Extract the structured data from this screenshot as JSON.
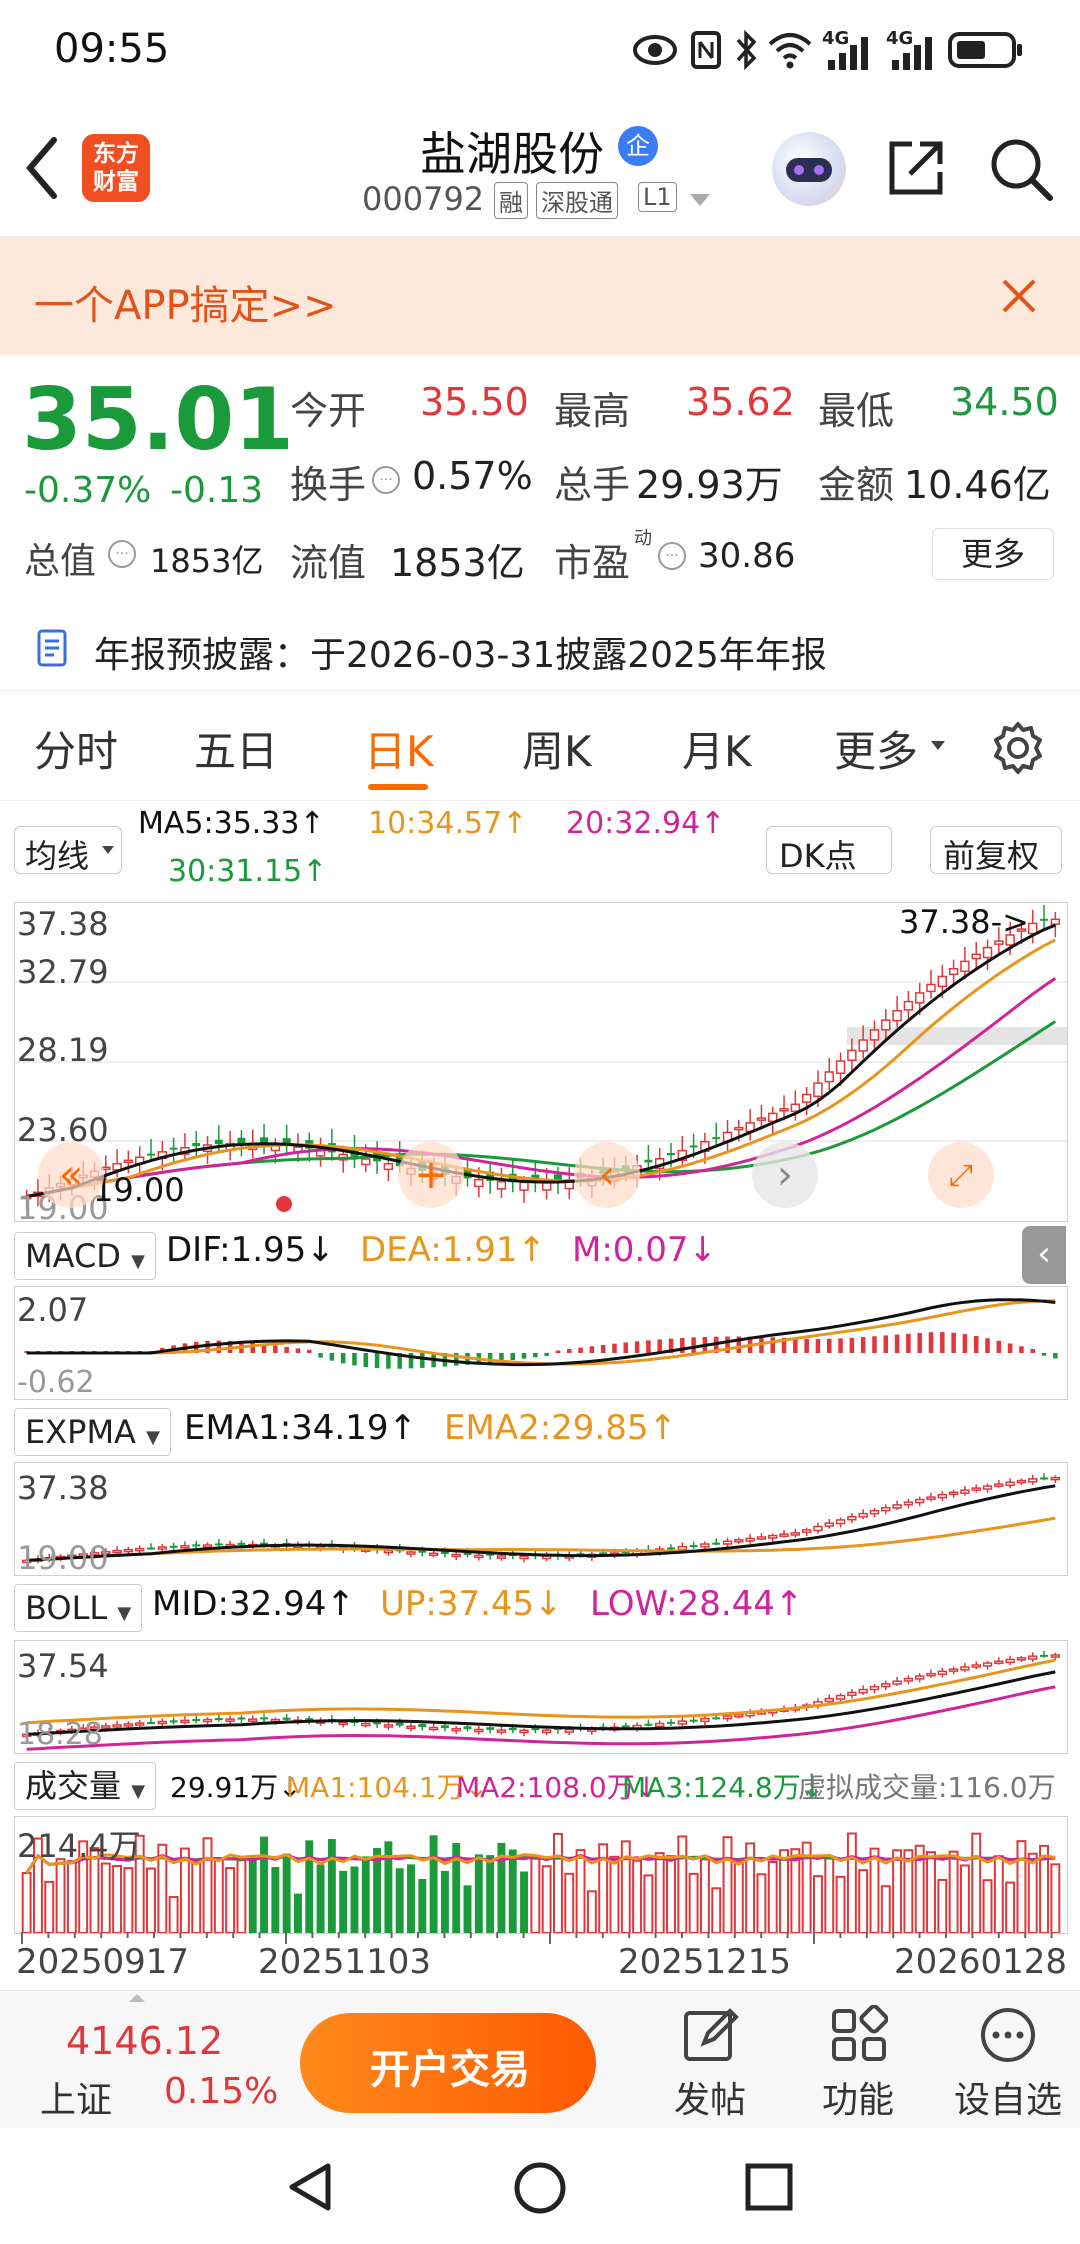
{
  "status_bar": {
    "time": "09:55",
    "network_1": "4G",
    "network_2": "4G"
  },
  "header": {
    "logo_line1": "东方",
    "logo_line2": "财富",
    "stock_name": "盐湖股份",
    "badge": "企",
    "code": "000792",
    "tag_rong": "融",
    "tag_sgt": "深股通",
    "tag_level": "L1"
  },
  "banner": {
    "text": "一个APP搞定>>"
  },
  "quote": {
    "price": "35.01",
    "change_pct": "-0.37%",
    "change_abs": "-0.13",
    "open_label": "今开",
    "open": "35.50",
    "high_label": "最高",
    "high": "35.62",
    "low_label": "最低",
    "low": "34.50",
    "turnover_label": "换手",
    "turnover": "0.57%",
    "volume_label": "总手",
    "volume": "29.93万",
    "amount_label": "金额",
    "amount": "10.46亿",
    "mcap_label": "总值",
    "mcap": "1853亿",
    "float_label": "流值",
    "float": "1853亿",
    "pe_label": "市盈",
    "pe_sup": "动",
    "pe": "30.86",
    "more": "更多"
  },
  "notice": {
    "text": "年报预披露：于2026-03-31披露2025年年报"
  },
  "tabs": [
    "分时",
    "五日",
    "日K",
    "周K",
    "月K",
    "更多"
  ],
  "active_tab": "日K",
  "ma_bar": {
    "select": "均线",
    "ma5": "MA5:35.33↑",
    "ma10": "10:34.57↑",
    "ma20": "20:32.94↑",
    "ma30": "30:31.15↑",
    "dk": "DK点",
    "adjust": "前复权"
  },
  "kline": {
    "y_labels": [
      "37.38",
      "32.79",
      "28.19",
      "23.60",
      "19.00"
    ],
    "max_label": "37.38->",
    "min_label": "19.00"
  },
  "macd": {
    "select": "MACD",
    "dif": "DIF:1.95↓",
    "dea": "DEA:1.91↑",
    "m": "M:0.07↓",
    "y_top": "2.07",
    "y_bottom": "-0.62"
  },
  "expma": {
    "select": "EXPMA",
    "ema1": "EMA1:34.19↑",
    "ema2": "EMA2:29.85↑",
    "y_top": "37.38",
    "y_bottom": "19.00"
  },
  "boll": {
    "select": "BOLL",
    "mid": "MID:32.94↑",
    "up": "UP:37.45↓",
    "low": "LOW:28.44↑",
    "y_top": "37.54",
    "y_bottom": "18.28"
  },
  "vol": {
    "select": "成交量",
    "v": "29.91万↓",
    "ma1": "MA1:104.1万↓",
    "ma2": "MA2:108.0万↓",
    "ma3": "MA3:124.8万↓",
    "virtual": "虚拟成交量:116.0万",
    "y_top": "214.4万"
  },
  "dates": [
    "20250917",
    "20251103",
    "20251215",
    "20260128"
  ],
  "footer": {
    "index_value": "4146.12",
    "index_name": "上证",
    "index_pct": "0.15%",
    "trade_btn": "开户交易",
    "post": "发帖",
    "func": "功能",
    "watch": "设自选"
  },
  "colors": {
    "up": "#e0373a",
    "down": "#1a9a3a",
    "accent": "#ff6a00",
    "ma10": "#e8951e",
    "ma20": "#d0249a"
  }
}
